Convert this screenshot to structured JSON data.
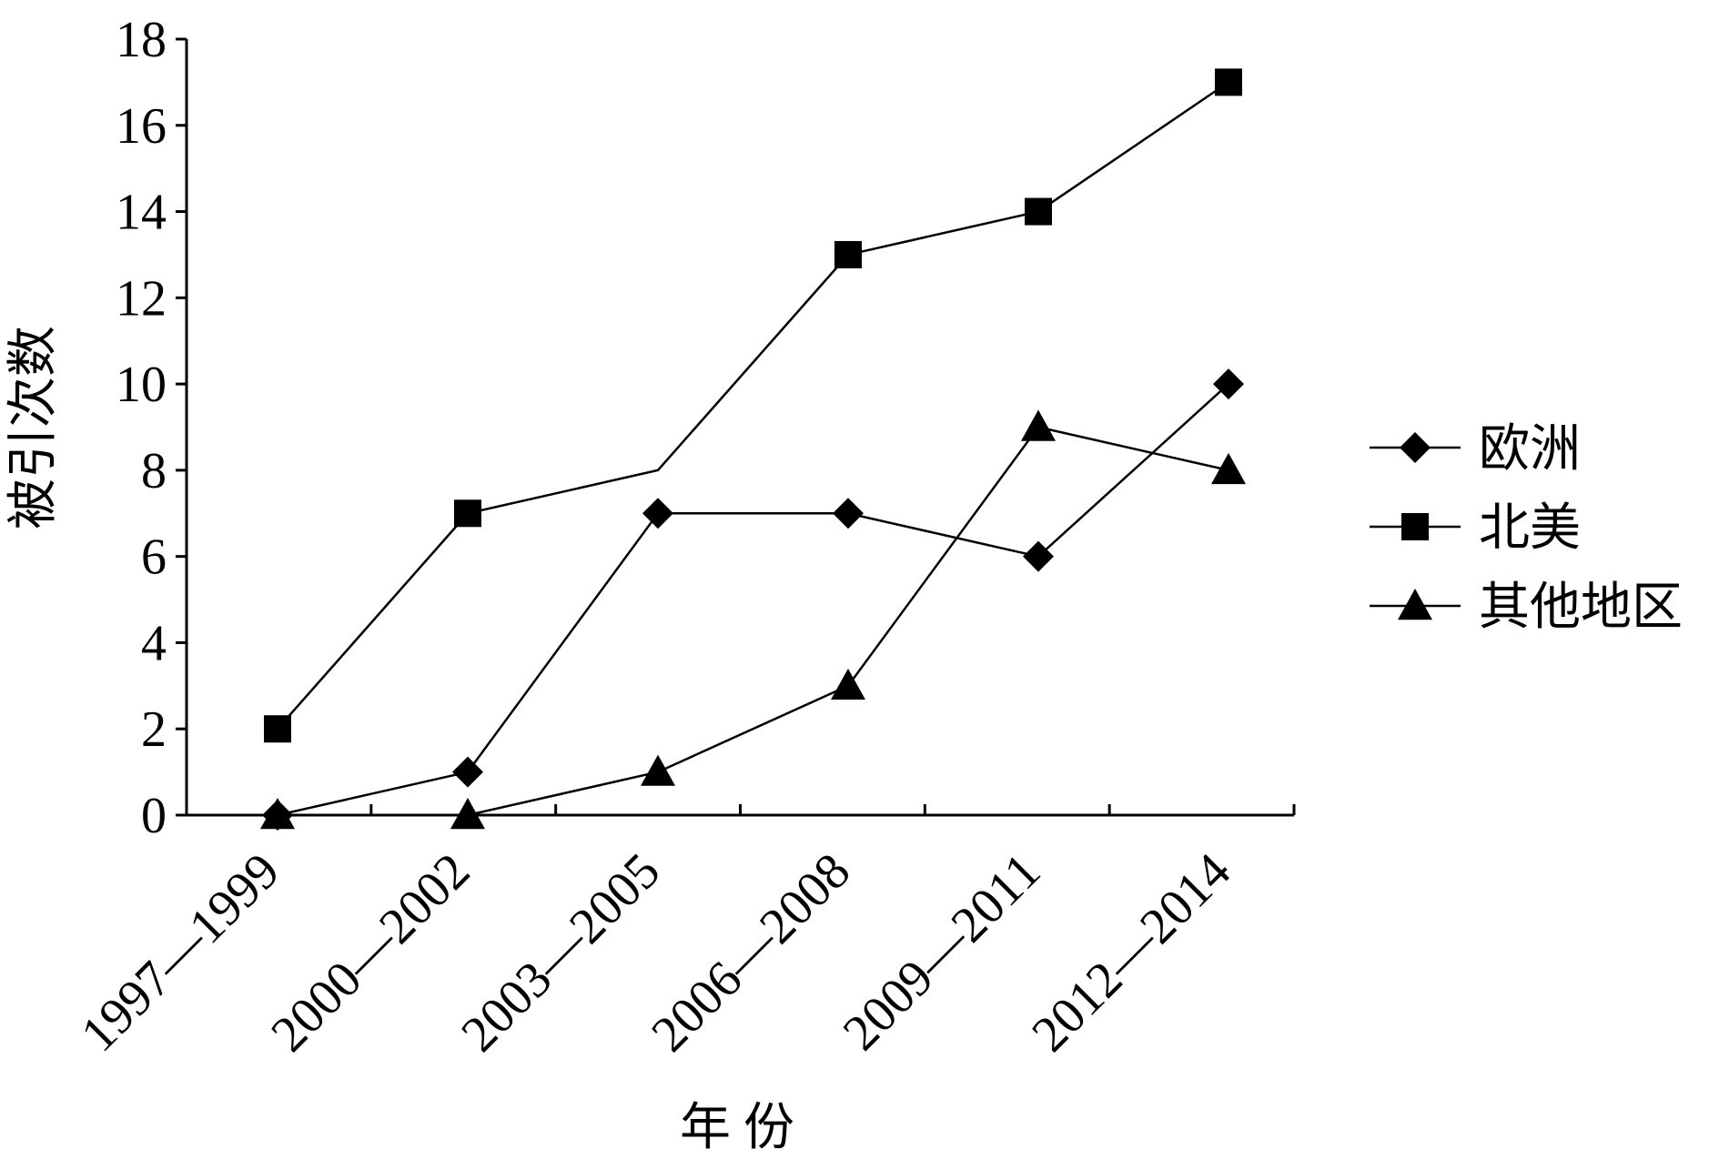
{
  "chart_data": {
    "type": "line",
    "categories": [
      "1997—1999",
      "2000—2002",
      "2003—2005",
      "2006—2008",
      "2009—2011",
      "2012—2014"
    ],
    "series": [
      {
        "name": "欧洲",
        "marker": "diamond",
        "values": [
          0,
          1,
          7,
          7,
          6,
          10
        ]
      },
      {
        "name": "北美",
        "marker": "square",
        "values": [
          2,
          7,
          8,
          13,
          14,
          17
        ]
      },
      {
        "name": "其他地区",
        "marker": "triangle",
        "values": [
          0,
          0,
          1,
          3,
          9,
          8
        ]
      }
    ],
    "series_marker_visibility": [
      [
        true,
        true,
        true,
        true,
        true,
        true
      ],
      [
        true,
        true,
        false,
        true,
        true,
        true
      ],
      [
        true,
        true,
        true,
        true,
        true,
        true
      ]
    ],
    "xlabel": "年 份",
    "ylabel": "被引次数",
    "ylim": [
      0,
      18
    ],
    "yticks": [
      "0",
      "2",
      "4",
      "6",
      "8",
      "10",
      "12",
      "14",
      "16",
      "18"
    ],
    "grid": false,
    "legend_position": "right",
    "line_color": "#000000"
  }
}
